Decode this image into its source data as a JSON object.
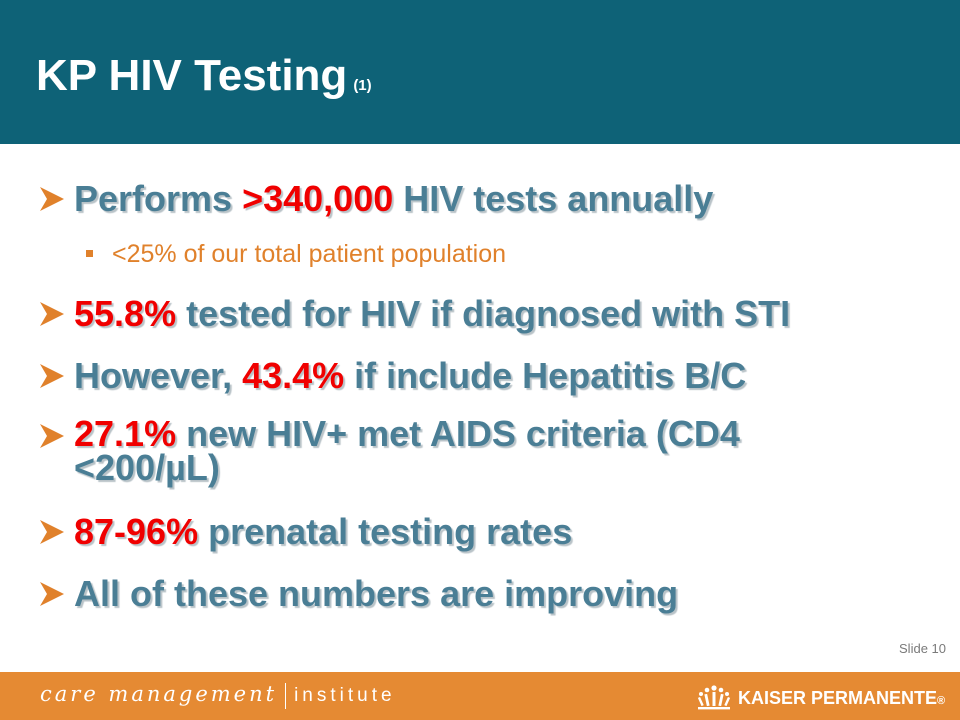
{
  "slide": {
    "title": "KP HIV Testing",
    "title_sub": "(1)",
    "bullets": [
      {
        "pre": "Performs ",
        "highlight": ">340,000",
        "post": " HIV tests annually"
      },
      {
        "sub": "<25% of our total patient population"
      },
      {
        "pre": "",
        "highlight": "55.8%",
        "post": " tested for HIV if diagnosed with STI"
      },
      {
        "pre": "However, ",
        "highlight": "43.4%",
        "post": " if include Hepatitis B/C"
      },
      {
        "pre": "",
        "highlight": "27.1%",
        "post_line1": " new HIV+ met AIDS criteria (CD4",
        "post_line2": "<200/µL)"
      },
      {
        "pre": "",
        "highlight": "87-96%",
        "post": " prenatal testing rates"
      },
      {
        "pre": "All of these numbers are improving"
      }
    ],
    "slide_number": "Slide 10"
  },
  "footer": {
    "left_script": "care management",
    "left_plain": "institute",
    "brand": "KAISER PERMANENTE",
    "brand_mark": "®"
  },
  "colors": {
    "header": "#0e6277",
    "bullet_text": "#4a7e95",
    "highlight": "#f00000",
    "sub_text": "#e0812b",
    "footer": "#e58a33"
  },
  "icons": {
    "bullet": "arrow-bullet-icon",
    "sub_bullet": "square-bullet-icon",
    "logo": "kaiser-permanente-logo-icon"
  }
}
